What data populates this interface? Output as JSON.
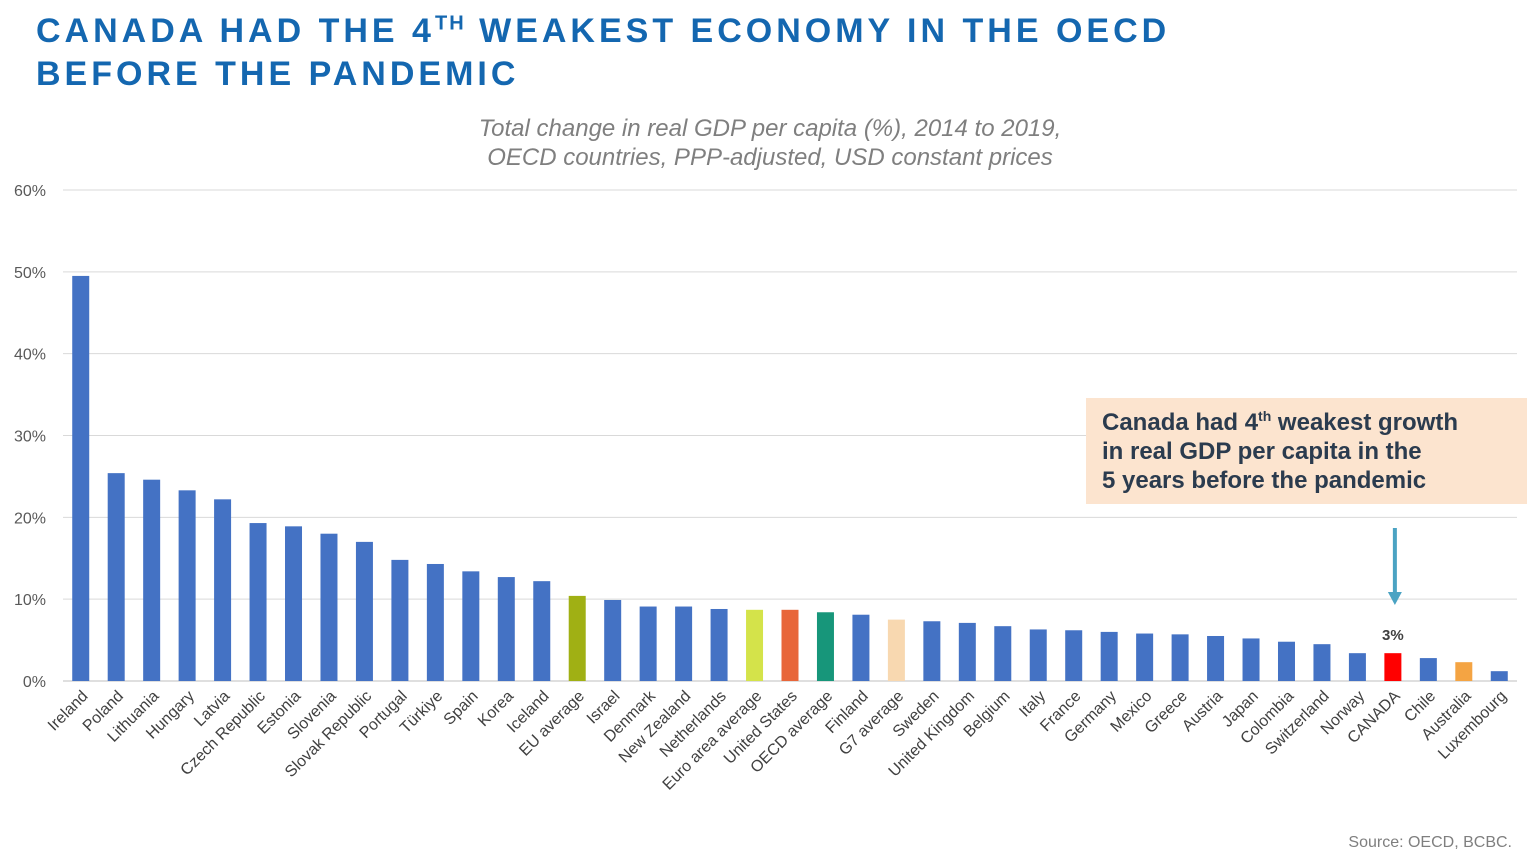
{
  "headline": {
    "line1_a": "CANADA HAD THE 4",
    "line1_sup": "TH",
    "line1_b": " WEAKEST ECONOMY IN THE OECD",
    "line2": "BEFORE THE PANDEMIC"
  },
  "callout": {
    "line1_a": "Canada had 4",
    "line1_sup": "th",
    "line1_b": " weakest growth",
    "line2": "in real GDP per capita in the",
    "line3": "5 years before the pandemic"
  },
  "source": "Source: OECD, BCBC.",
  "colors": {
    "default_bar": "#4472c4",
    "eu_average": "#a0b014",
    "euro_area_average": "#d4e34a",
    "united_states": "#e8663a",
    "oecd_average": "#17967a",
    "g7_average": "#f8d8b0",
    "canada": "#ff0000",
    "australia": "#f4a443",
    "arrow": "#4ba3c3"
  },
  "chart_data": {
    "type": "bar",
    "title": "Total change in real GDP per capita (%), 2014 to 2019,",
    "subtitle": "OECD countries, PPP-adjusted, USD constant prices",
    "xlabel": "",
    "ylabel": "",
    "ylim": [
      0,
      60
    ],
    "yticks": [
      "0%",
      "10%",
      "20%",
      "30%",
      "40%",
      "50%",
      "60%"
    ],
    "grid": true,
    "categories": [
      "Ireland",
      "Poland",
      "Lithuania",
      "Hungary",
      "Latvia",
      "Czech Republic",
      "Estonia",
      "Slovenia",
      "Slovak Republic",
      "Portugal",
      "Türkiye",
      "Spain",
      "Korea",
      "Iceland",
      "EU average",
      "Israel",
      "Denmark",
      "New Zealand",
      "Netherlands",
      "Euro area average",
      "United States",
      "OECD average",
      "Finland",
      "G7 average",
      "Sweden",
      "United Kingdom",
      "Belgium",
      "Italy",
      "France",
      "Germany",
      "Mexico",
      "Greece",
      "Austria",
      "Japan",
      "Colombia",
      "Switzerland",
      "Norway",
      "CANADA",
      "Chile",
      "Australia",
      "Luxembourg"
    ],
    "values": [
      49.5,
      25.4,
      24.6,
      23.3,
      22.2,
      19.3,
      18.9,
      18.0,
      17.0,
      14.8,
      14.3,
      13.4,
      12.7,
      12.2,
      10.4,
      9.9,
      9.1,
      9.1,
      8.8,
      8.7,
      8.7,
      8.4,
      8.1,
      7.5,
      7.3,
      7.1,
      6.7,
      6.3,
      6.2,
      6.0,
      5.8,
      5.7,
      5.5,
      5.2,
      4.8,
      4.5,
      3.4,
      3.4,
      2.8,
      2.3,
      1.2
    ],
    "bar_color_keys": [
      "default_bar",
      "default_bar",
      "default_bar",
      "default_bar",
      "default_bar",
      "default_bar",
      "default_bar",
      "default_bar",
      "default_bar",
      "default_bar",
      "default_bar",
      "default_bar",
      "default_bar",
      "default_bar",
      "eu_average",
      "default_bar",
      "default_bar",
      "default_bar",
      "default_bar",
      "euro_area_average",
      "united_states",
      "oecd_average",
      "default_bar",
      "g7_average",
      "default_bar",
      "default_bar",
      "default_bar",
      "default_bar",
      "default_bar",
      "default_bar",
      "default_bar",
      "default_bar",
      "default_bar",
      "default_bar",
      "default_bar",
      "default_bar",
      "default_bar",
      "canada",
      "default_bar",
      "australia",
      "default_bar"
    ],
    "annotations": [
      {
        "category": "CANADA",
        "label": "3%"
      }
    ]
  }
}
